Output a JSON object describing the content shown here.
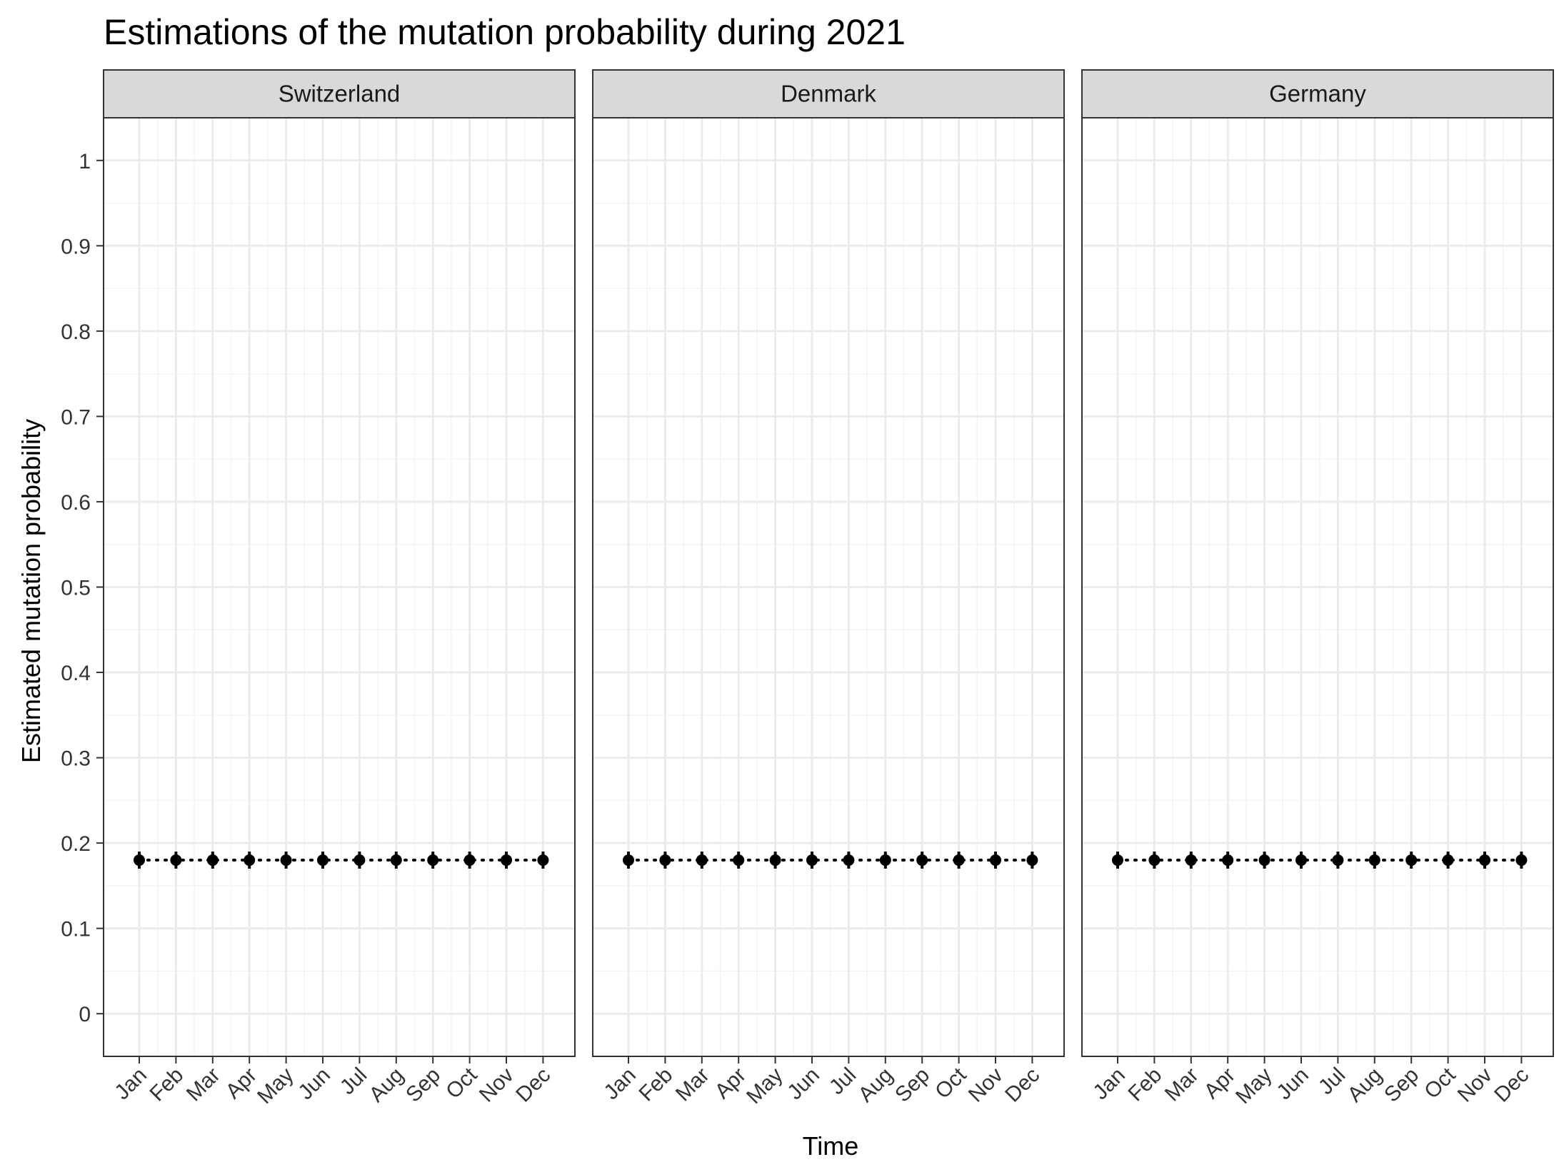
{
  "chart_data": {
    "type": "scatter",
    "title": "Estimations of the mutation probability during 2021",
    "xlabel": "Time",
    "ylabel": "Estimated mutation probability",
    "ylim": [
      -0.05,
      1.05
    ],
    "y_ticks": [
      0,
      0.1,
      0.2,
      0.3,
      0.4,
      0.5,
      0.6,
      0.7,
      0.8,
      0.9,
      1
    ],
    "y_tick_labels": [
      "0",
      "0.1",
      "0.2",
      "0.3",
      "0.4",
      "0.5",
      "0.6",
      "0.7",
      "0.8",
      "0.9",
      "1"
    ],
    "categories": [
      "Jan",
      "Feb",
      "Mar",
      "Apr",
      "May",
      "Jun",
      "Jul",
      "Aug",
      "Sep",
      "Oct",
      "Nov",
      "Dec"
    ],
    "grid": true,
    "connector_line": "dotted",
    "error_bars": true,
    "colors": {
      "points": "#000000",
      "strip_background": "#d9d9d9",
      "grid_major": "#ebebeb",
      "grid_minor": "#f4f4f4",
      "panel_border": "#333333"
    },
    "panels": [
      {
        "name": "Switzerland",
        "values": [
          0.18,
          0.18,
          0.18,
          0.18,
          0.18,
          0.18,
          0.18,
          0.18,
          0.18,
          0.18,
          0.18,
          0.18
        ],
        "lower": [
          0.17,
          0.17,
          0.17,
          0.17,
          0.17,
          0.17,
          0.17,
          0.17,
          0.17,
          0.17,
          0.17,
          0.17
        ],
        "upper": [
          0.19,
          0.19,
          0.19,
          0.19,
          0.19,
          0.19,
          0.19,
          0.19,
          0.19,
          0.19,
          0.19,
          0.19
        ]
      },
      {
        "name": "Denmark",
        "values": [
          0.18,
          0.18,
          0.18,
          0.18,
          0.18,
          0.18,
          0.18,
          0.18,
          0.18,
          0.18,
          0.18,
          0.18
        ],
        "lower": [
          0.17,
          0.17,
          0.17,
          0.17,
          0.17,
          0.17,
          0.17,
          0.17,
          0.17,
          0.17,
          0.17,
          0.17
        ],
        "upper": [
          0.19,
          0.19,
          0.19,
          0.19,
          0.19,
          0.19,
          0.19,
          0.19,
          0.19,
          0.19,
          0.19,
          0.19
        ]
      },
      {
        "name": "Germany",
        "values": [
          0.18,
          0.18,
          0.18,
          0.18,
          0.18,
          0.18,
          0.18,
          0.18,
          0.18,
          0.18,
          0.18,
          0.18
        ],
        "lower": [
          0.17,
          0.17,
          0.17,
          0.17,
          0.17,
          0.17,
          0.17,
          0.17,
          0.17,
          0.17,
          0.17,
          0.17
        ],
        "upper": [
          0.19,
          0.19,
          0.19,
          0.19,
          0.19,
          0.19,
          0.19,
          0.19,
          0.19,
          0.19,
          0.19,
          0.19
        ]
      }
    ]
  }
}
